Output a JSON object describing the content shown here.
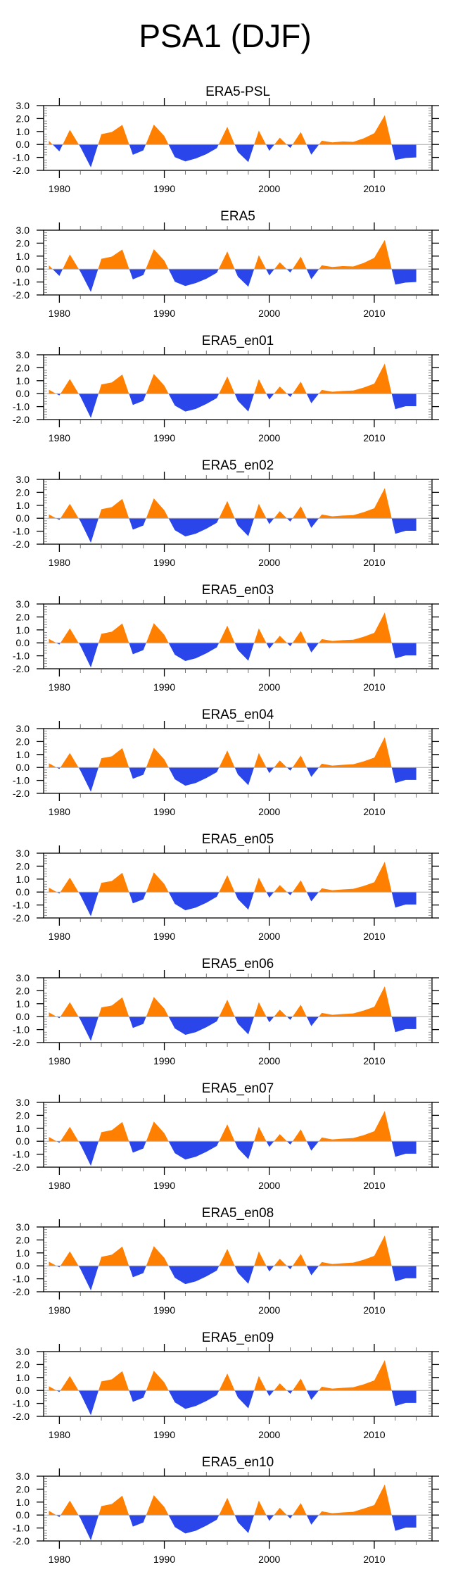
{
  "figure": {
    "title": "PSA1 (DJF)",
    "colors": {
      "positive": "#FF8000",
      "negative": "#2A45EA",
      "zero_line": "#AAAAAA",
      "frame": "#000000"
    }
  },
  "chart_data": {
    "type": "area",
    "title": "PSA1 (DJF)",
    "xlabel": "",
    "ylabel": "",
    "xlim": [
      1978.5,
      2015.5
    ],
    "ylim": [
      -2.0,
      3.0
    ],
    "x_ticks": [
      1980,
      1990,
      2000,
      2010
    ],
    "x_tick_labels": [
      "1980",
      "1990",
      "2000",
      "2010"
    ],
    "y_ticks": [
      3.0,
      2.0,
      1.0,
      0.0,
      -1.0,
      -2.0
    ],
    "y_tick_labels": [
      "3.0",
      "2.0",
      "1.0",
      "0.0",
      "-1.0",
      "-2.0"
    ],
    "grid": false,
    "fill": "above zero orange, below zero blue",
    "x": [
      1979,
      1980,
      1981,
      1982,
      1983,
      1984,
      1985,
      1986,
      1987,
      1988,
      1989,
      1990,
      1991,
      1992,
      1993,
      1994,
      1995,
      1996,
      1997,
      1998,
      1999,
      2000,
      2001,
      2002,
      2003,
      2004,
      2005,
      2006,
      2007,
      2008,
      2009,
      2010,
      2011,
      2012,
      2013,
      2014
    ],
    "series": [
      {
        "name": "ERA5-PSL",
        "values": [
          0.29,
          -0.53,
          1.13,
          -0.2,
          -1.77,
          0.79,
          0.96,
          1.51,
          -0.8,
          -0.46,
          1.53,
          0.65,
          -0.98,
          -1.31,
          -1.08,
          -0.75,
          -0.29,
          1.36,
          -0.58,
          -1.36,
          1.07,
          -0.49,
          0.52,
          -0.27,
          0.96,
          -0.79,
          0.29,
          0.16,
          0.23,
          0.2,
          0.47,
          0.87,
          2.25,
          -1.2,
          -1.04,
          -1.0
        ]
      },
      {
        "name": "ERA5",
        "values": [
          0.29,
          -0.53,
          1.13,
          -0.2,
          -1.77,
          0.79,
          0.96,
          1.51,
          -0.8,
          -0.46,
          1.53,
          0.65,
          -0.98,
          -1.31,
          -1.08,
          -0.75,
          -0.29,
          1.36,
          -0.58,
          -1.36,
          1.07,
          -0.49,
          0.52,
          -0.27,
          0.96,
          -0.79,
          0.29,
          0.16,
          0.23,
          0.2,
          0.47,
          0.87,
          2.25,
          -1.2,
          -1.04,
          -1.0
        ]
      },
      {
        "name": "ERA5_en01",
        "values": [
          0.3,
          -0.14,
          1.13,
          -0.22,
          -1.88,
          0.71,
          0.87,
          1.48,
          -0.87,
          -0.55,
          1.52,
          0.62,
          -0.92,
          -1.38,
          -1.18,
          -0.8,
          -0.34,
          1.33,
          -0.55,
          -1.38,
          1.12,
          -0.45,
          0.55,
          -0.26,
          0.93,
          -0.74,
          0.29,
          0.15,
          0.21,
          0.24,
          0.47,
          0.77,
          2.33,
          -1.2,
          -0.97,
          -0.97
        ]
      },
      {
        "name": "ERA5_en02",
        "values": [
          0.3,
          -0.13,
          1.12,
          -0.23,
          -1.89,
          0.7,
          0.86,
          1.5,
          -0.88,
          -0.56,
          1.53,
          0.62,
          -0.92,
          -1.4,
          -1.19,
          -0.81,
          -0.35,
          1.33,
          -0.55,
          -1.38,
          1.12,
          -0.45,
          0.55,
          -0.26,
          0.93,
          -0.74,
          0.29,
          0.15,
          0.21,
          0.24,
          0.47,
          0.77,
          2.33,
          -1.2,
          -0.97,
          -0.97
        ]
      },
      {
        "name": "ERA5_en03",
        "values": [
          0.3,
          -0.13,
          1.12,
          -0.23,
          -1.9,
          0.7,
          0.86,
          1.5,
          -0.88,
          -0.56,
          1.52,
          0.62,
          -0.92,
          -1.4,
          -1.19,
          -0.81,
          -0.35,
          1.33,
          -0.55,
          -1.38,
          1.12,
          -0.45,
          0.55,
          -0.26,
          0.93,
          -0.74,
          0.29,
          0.15,
          0.21,
          0.24,
          0.47,
          0.77,
          2.34,
          -1.2,
          -0.97,
          -0.97
        ]
      },
      {
        "name": "ERA5_en04",
        "values": [
          0.32,
          -0.12,
          1.12,
          -0.24,
          -1.88,
          0.71,
          0.86,
          1.49,
          -0.87,
          -0.56,
          1.52,
          0.62,
          -0.91,
          -1.41,
          -1.2,
          -0.82,
          -0.36,
          1.31,
          -0.54,
          -1.37,
          1.12,
          -0.44,
          0.54,
          -0.25,
          0.92,
          -0.73,
          0.29,
          0.14,
          0.2,
          0.25,
          0.47,
          0.76,
          2.34,
          -1.2,
          -0.96,
          -0.96
        ]
      },
      {
        "name": "ERA5_en05",
        "values": [
          0.34,
          -0.11,
          1.12,
          -0.24,
          -1.87,
          0.71,
          0.85,
          1.49,
          -0.87,
          -0.56,
          1.52,
          0.62,
          -0.91,
          -1.41,
          -1.2,
          -0.83,
          -0.36,
          1.3,
          -0.54,
          -1.36,
          1.12,
          -0.43,
          0.54,
          -0.25,
          0.91,
          -0.72,
          0.29,
          0.14,
          0.2,
          0.25,
          0.47,
          0.76,
          2.34,
          -1.2,
          -0.96,
          -0.96
        ]
      },
      {
        "name": "ERA5_en06",
        "values": [
          0.33,
          -0.12,
          1.12,
          -0.24,
          -1.88,
          0.71,
          0.86,
          1.49,
          -0.87,
          -0.56,
          1.52,
          0.62,
          -0.91,
          -1.4,
          -1.2,
          -0.82,
          -0.36,
          1.31,
          -0.54,
          -1.37,
          1.12,
          -0.44,
          0.54,
          -0.25,
          0.92,
          -0.73,
          0.29,
          0.14,
          0.2,
          0.25,
          0.47,
          0.76,
          2.34,
          -1.2,
          -0.96,
          -0.96
        ]
      },
      {
        "name": "ERA5_en07",
        "values": [
          0.33,
          -0.12,
          1.12,
          -0.24,
          -1.9,
          0.7,
          0.86,
          1.49,
          -0.88,
          -0.56,
          1.52,
          0.62,
          -0.92,
          -1.41,
          -1.2,
          -0.82,
          -0.36,
          1.31,
          -0.54,
          -1.38,
          1.12,
          -0.44,
          0.55,
          -0.26,
          0.92,
          -0.73,
          0.29,
          0.14,
          0.2,
          0.25,
          0.47,
          0.77,
          2.34,
          -1.2,
          -0.96,
          -0.96
        ]
      },
      {
        "name": "ERA5_en08",
        "values": [
          0.32,
          -0.12,
          1.12,
          -0.24,
          -1.9,
          0.7,
          0.86,
          1.49,
          -0.88,
          -0.56,
          1.52,
          0.62,
          -0.92,
          -1.41,
          -1.2,
          -0.82,
          -0.36,
          1.31,
          -0.54,
          -1.38,
          1.12,
          -0.44,
          0.55,
          -0.26,
          0.92,
          -0.73,
          0.29,
          0.14,
          0.2,
          0.25,
          0.47,
          0.77,
          2.34,
          -1.2,
          -0.96,
          -0.96
        ]
      },
      {
        "name": "ERA5_en09",
        "values": [
          0.32,
          -0.12,
          1.12,
          -0.24,
          -1.91,
          0.7,
          0.86,
          1.49,
          -0.88,
          -0.56,
          1.52,
          0.62,
          -0.92,
          -1.42,
          -1.2,
          -0.82,
          -0.36,
          1.31,
          -0.54,
          -1.38,
          1.12,
          -0.44,
          0.55,
          -0.26,
          0.92,
          -0.73,
          0.29,
          0.14,
          0.2,
          0.25,
          0.47,
          0.77,
          2.34,
          -1.2,
          -0.96,
          -0.96
        ]
      },
      {
        "name": "ERA5_en10",
        "values": [
          0.33,
          -0.15,
          1.12,
          -0.25,
          -1.95,
          0.69,
          0.85,
          1.5,
          -0.89,
          -0.57,
          1.53,
          0.62,
          -0.93,
          -1.42,
          -1.21,
          -0.82,
          -0.36,
          1.33,
          -0.55,
          -1.39,
          1.12,
          -0.45,
          0.56,
          -0.27,
          0.93,
          -0.74,
          0.29,
          0.14,
          0.2,
          0.25,
          0.5,
          0.77,
          2.36,
          -1.22,
          -0.97,
          -0.97
        ]
      }
    ]
  }
}
